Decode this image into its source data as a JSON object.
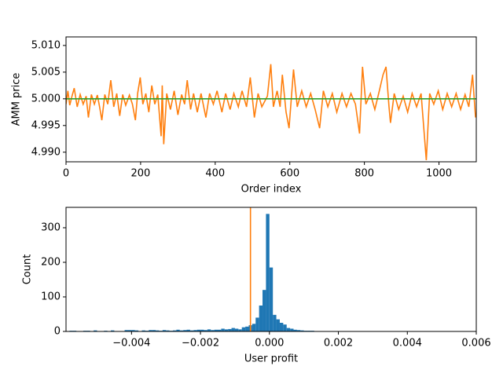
{
  "chart_data": [
    {
      "type": "line",
      "xlabel": "Order index",
      "ylabel": "AMM price",
      "xlim": [
        0,
        1100
      ],
      "xticks": [
        0,
        200,
        400,
        600,
        800,
        1000
      ],
      "ylim": [
        4.9882,
        5.0116
      ],
      "yticks": [
        {
          "value": 4.99,
          "label": "4.990"
        },
        4.995,
        {
          "value": 5,
          "label": "5.000"
        },
        5.005,
        {
          "value": 5.01,
          "label": "5.010"
        }
      ],
      "series": [
        {
          "color": "#ff7f0e",
          "x": [
            0,
            5,
            10,
            16,
            22,
            30,
            38,
            46,
            54,
            60,
            68,
            76,
            84,
            90,
            96,
            104,
            112,
            120,
            128,
            136,
            144,
            152,
            160,
            170,
            178,
            186,
            192,
            199,
            206,
            214,
            222,
            230,
            238,
            246,
            255,
            258,
            262,
            270,
            280,
            290,
            300,
            310,
            318,
            325,
            334,
            342,
            352,
            362,
            375,
            385,
            395,
            405,
            418,
            428,
            440,
            450,
            462,
            472,
            484,
            494,
            505,
            515,
            525,
            540,
            549,
            556,
            566,
            574,
            580,
            590,
            598,
            610,
            620,
            632,
            644,
            656,
            668,
            680,
            690,
            702,
            714,
            726,
            740,
            752,
            764,
            776,
            787,
            795,
            804,
            816,
            828,
            840,
            850,
            858,
            866,
            870,
            880,
            892,
            904,
            916,
            928,
            940,
            952,
            966,
            975,
            986,
            998,
            1010,
            1022,
            1034,
            1046,
            1058,
            1070,
            1080,
            1090,
            1098
          ],
          "values": [
            4.999,
            5.0015,
            4.9988,
            5.0005,
            5.002,
            4.9985,
            5.0008,
            4.999,
            5.0005,
            4.9965,
            5.0008,
            4.999,
            5.0007,
            4.9985,
            4.996,
            5.0008,
            4.999,
            5.0035,
            4.9985,
            5.001,
            4.9968,
            5.0008,
            4.9988,
            5.0007,
            4.999,
            4.996,
            5.001,
            5.004,
            4.999,
            5.001,
            4.9975,
            5.0025,
            4.999,
            5.0008,
            4.993,
            5.0025,
            4.9915,
            5.001,
            4.998,
            5.0015,
            4.997,
            5.0008,
            4.999,
            5.0035,
            4.998,
            5.001,
            4.9975,
            5.001,
            4.9965,
            5.001,
            4.999,
            5.0015,
            4.9975,
            5.001,
            4.998,
            5.001,
            4.9985,
            5.0015,
            4.9985,
            5.004,
            4.9965,
            5.001,
            4.9985,
            5.0005,
            5.0065,
            4.9985,
            5.0015,
            4.9985,
            5.0045,
            4.9975,
            4.9945,
            5.0055,
            4.9985,
            5.0015,
            4.9985,
            5.001,
            4.998,
            4.9945,
            5.0015,
            4.9985,
            5.001,
            4.9975,
            5.001,
            4.9985,
            5.001,
            4.999,
            4.9935,
            5.006,
            4.999,
            5.001,
            4.998,
            5.0015,
            5.0045,
            5.006,
            4.9985,
            4.9955,
            5.001,
            4.998,
            5.0005,
            4.9975,
            5.001,
            4.9985,
            5.001,
            4.9885,
            5.001,
            4.999,
            5.0015,
            4.998,
            5.001,
            4.9985,
            5.001,
            4.998,
            5.0008,
            4.9985,
            5.0045,
            4.9965
          ]
        },
        {
          "color": "#2ca02c",
          "x": [
            0,
            1100
          ],
          "values": [
            5,
            5
          ]
        }
      ]
    },
    {
      "type": "histogram",
      "xlabel": "User profit",
      "ylabel": "Count",
      "color": "#1f77b4",
      "xlim": [
        -0.0059,
        0.006
      ],
      "xticks": [
        {
          "value": -0.004,
          "label": "−0.004"
        },
        {
          "value": -0.002,
          "label": "−0.002"
        },
        {
          "value": 0,
          "label": "0.000"
        },
        0.002,
        0.004,
        0.006
      ],
      "ylim": [
        0,
        359
      ],
      "yticks": [
        0,
        100,
        200,
        300
      ],
      "bins": [
        -0.0058,
        -0.0057,
        -0.0056,
        -0.0055,
        -0.0054,
        -0.0053,
        -0.0052,
        -0.0051,
        -0.005,
        -0.0049,
        -0.0048,
        -0.0047,
        -0.0046,
        -0.0045,
        -0.0044,
        -0.0043,
        -0.0042,
        -0.0041,
        -0.004,
        -0.0039,
        -0.0038,
        -0.0037,
        -0.0036,
        -0.0035,
        -0.0034,
        -0.0033,
        -0.0032,
        -0.0031,
        -0.003,
        -0.0029,
        -0.0028,
        -0.0027,
        -0.0026,
        -0.0025,
        -0.0024,
        -0.0023,
        -0.0022,
        -0.0021,
        -0.002,
        -0.0019,
        -0.0018,
        -0.0017,
        -0.0016,
        -0.0015,
        -0.0014,
        -0.0013,
        -0.0012,
        -0.0011,
        -0.001,
        -0.0009,
        -0.0008,
        -0.0007,
        -0.0006,
        -0.0005,
        -0.0004,
        -0.0003,
        -0.0002,
        -0.0001,
        0,
        0.0001,
        0.0002,
        0.0003,
        0.0004,
        0.0005,
        0.0006,
        0.0007,
        0.0008,
        0.0009,
        0.001,
        0.0011,
        0.0012,
        0.0013,
        0.0014,
        0.0015
      ],
      "values": [
        2,
        2,
        0,
        0,
        2,
        2,
        0,
        3,
        0,
        0,
        2,
        0,
        3,
        0,
        0,
        0,
        4,
        4,
        4,
        3,
        0,
        3,
        2,
        4,
        4,
        3,
        2,
        4,
        3,
        2,
        3,
        5,
        3,
        4,
        5,
        3,
        4,
        5,
        5,
        4,
        6,
        4,
        5,
        5,
        8,
        6,
        7,
        10,
        8,
        6,
        12,
        14,
        18,
        22,
        40,
        75,
        120,
        340,
        185,
        48,
        35,
        25,
        20,
        10,
        8,
        5,
        4,
        3,
        2,
        2,
        2,
        1,
        1
      ],
      "vline": -0.00055,
      "vline_color": "#ff7f0e"
    }
  ]
}
